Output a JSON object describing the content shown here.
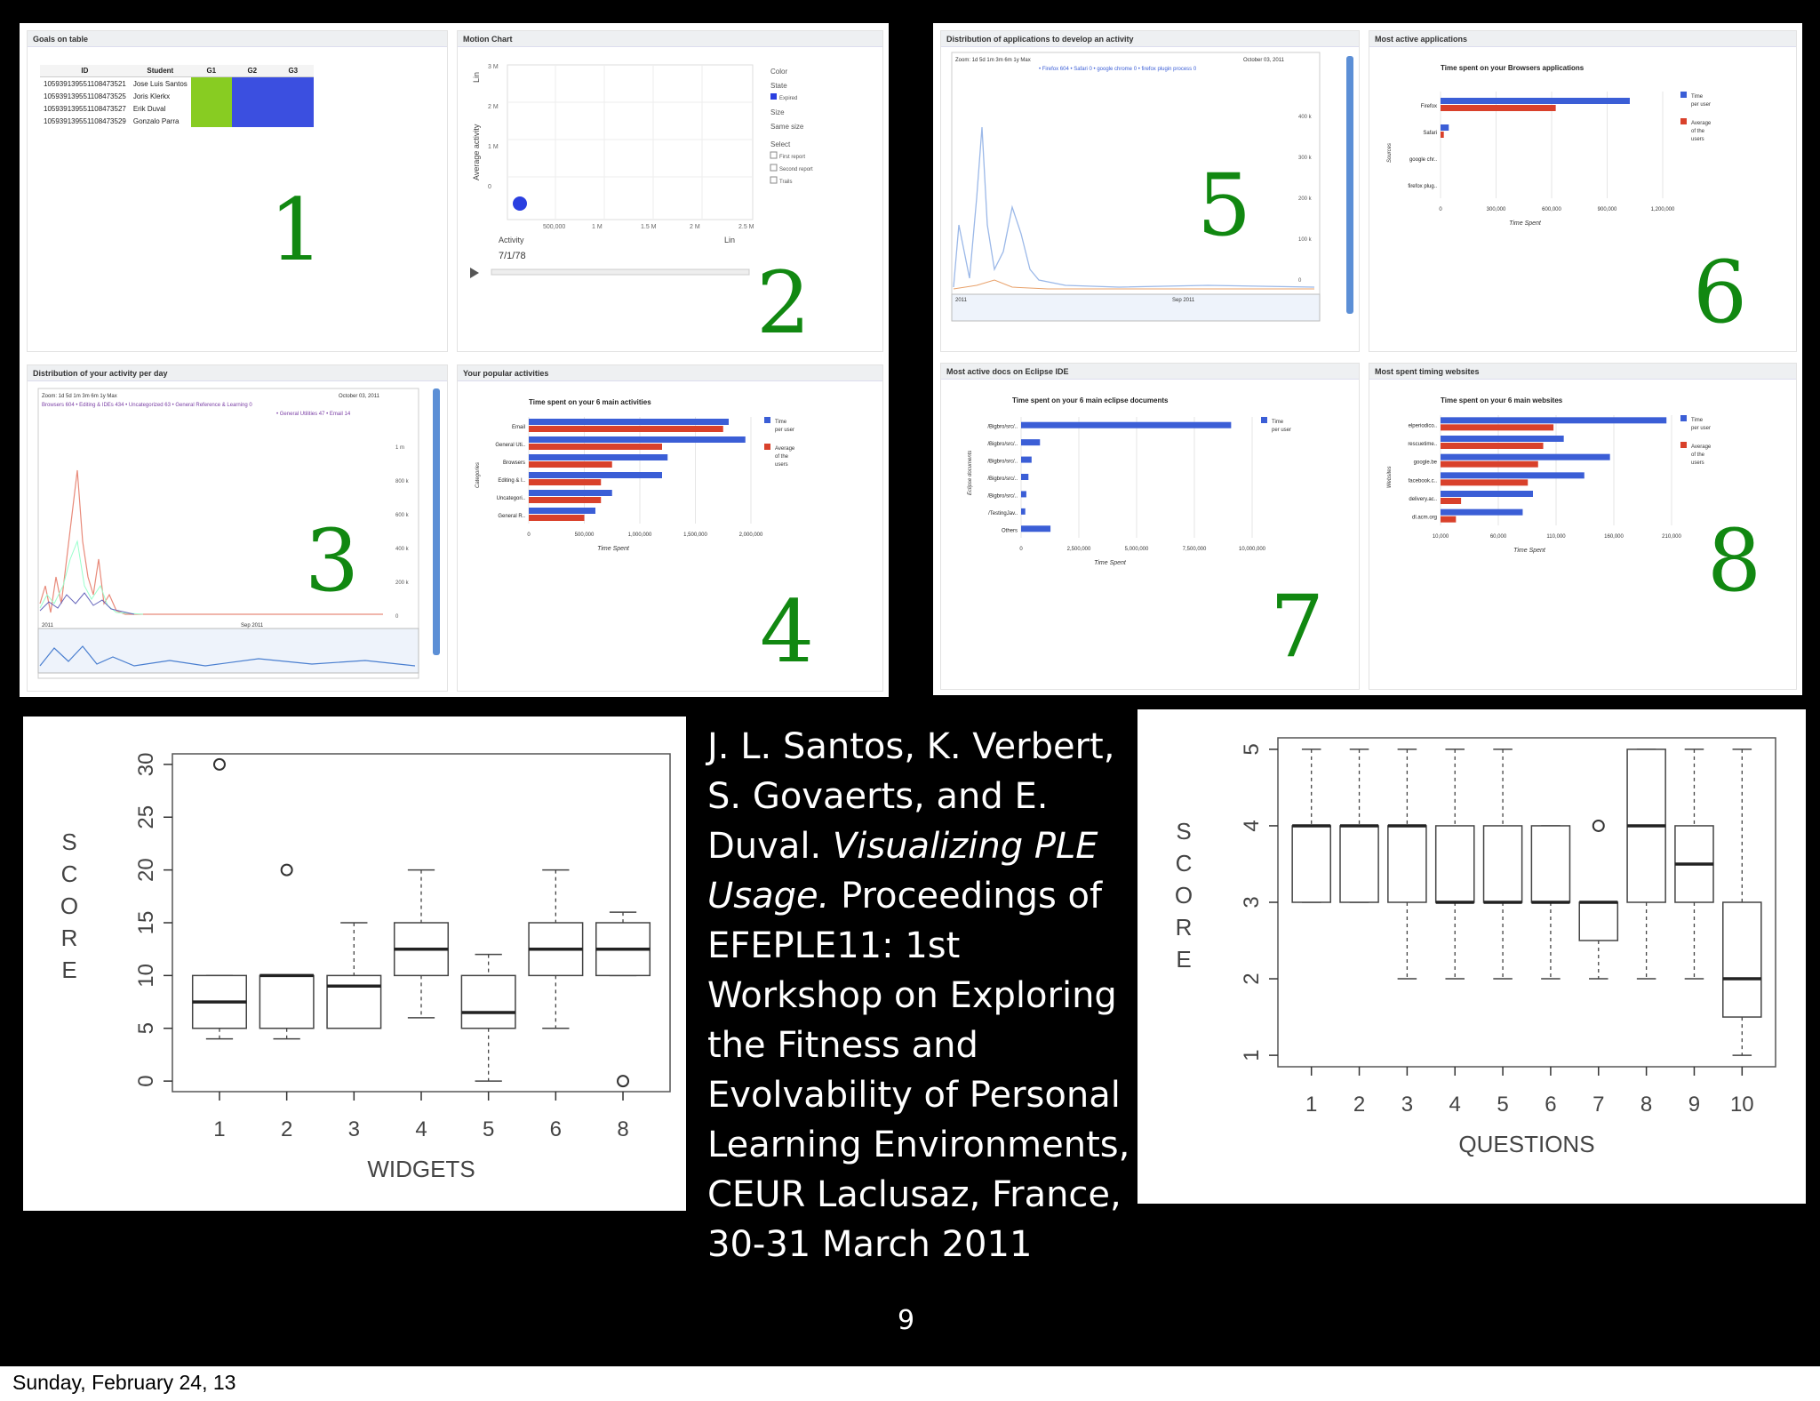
{
  "slide": {
    "page_number": "9",
    "footer_date": "Sunday, February 24, 13",
    "citation": {
      "authors": "J. L. Santos, K. Verbert, S. Govaerts, and E. Duval.",
      "title": "Visualizing PLE Usage.",
      "rest": "Proceedings of EFEPLE11: 1st Workshop on Exploring the Fitness and Evolvability of Personal Learning Environments, CEUR Laclusaz, France, 30-31 March 2011"
    }
  },
  "widgets": {
    "w1": {
      "title": "Goals on table",
      "number": "1",
      "headers": [
        "ID",
        "Student",
        "G1",
        "G2",
        "G3"
      ],
      "rows": [
        [
          "105939139551108473521",
          "Jose Luis Santos"
        ],
        [
          "105939139551108473525",
          "Joris Klerkx"
        ],
        [
          "105939139551108473527",
          "Erik Duval"
        ],
        [
          "105939139551108473529",
          "Gonzalo Parra"
        ]
      ]
    },
    "w2": {
      "title": "Motion Chart",
      "number": "2",
      "y_axis": "Average activity",
      "y_scale": "Lin",
      "y_ticks": [
        "3 M",
        "2 M",
        "1 M",
        "0"
      ],
      "x_ticks": [
        "500,000",
        "1 M",
        "1.5 M",
        "2 M",
        "2.5 M"
      ],
      "x_axis": "Activity",
      "x_scale": "Lin",
      "date": "7/1/78",
      "side": {
        "color": "Color",
        "state": "State",
        "color_value": "Expired",
        "size": "Size",
        "size_value": "Same size",
        "select": "Select",
        "opt1": "First report",
        "opt2": "Second report",
        "opt3": "Trails"
      }
    },
    "w3": {
      "title": "Distribution of your activity per day",
      "number": "3",
      "zoom": "Zoom: 1d 5d 1m 3m 6m 1y Max",
      "date": "October 03, 2011",
      "legend1": "Browsers 604 • Editing & IDEs 434 • Uncategorized 63 • General Reference & Learning 0",
      "legend2": "• General Utilities 47 • Email 14",
      "y_ticks": [
        "1 m",
        "800 k",
        "600 k",
        "400 k",
        "200 k",
        "0"
      ],
      "range_left": "2011",
      "range_right": "Sep 2011"
    },
    "w4": {
      "title": "Your popular activities",
      "number": "4",
      "chart_title": "Time spent on your 6 main activities",
      "y_axis": "Categories",
      "x_axis": "Time Spent",
      "legend": [
        "Time per user",
        "Average of the users"
      ]
    },
    "w5": {
      "title": "Distribution of applications to develop an activity",
      "number": "5",
      "zoom": "Zoom: 1d 5d 1m 3m 6m 1y Max",
      "date": "October 03, 2011",
      "legend": "• Firefox 604 • Safari 0 • google chrome 0 • firefox plugin process 0",
      "y_ticks": [
        "400 k",
        "300 k",
        "200 k",
        "100 k",
        "0"
      ],
      "range_left": "2011",
      "range_right": "Sep 2011"
    },
    "w6": {
      "title": "Most active applications",
      "number": "6",
      "chart_title": "Time spent on your Browsers applications",
      "y_axis": "Sources",
      "x_axis": "Time Spent",
      "legend": [
        "Time per user",
        "Average of the users"
      ]
    },
    "w7": {
      "title": "Most active docs on Eclipse IDE",
      "number": "7",
      "chart_title": "Time spent on your 6 main eclipse documents",
      "y_axis": "Eclipse documents",
      "x_axis": "Time Spent",
      "legend": [
        "Time per user"
      ]
    },
    "w8": {
      "title": "Most spent timing websites",
      "number": "8",
      "chart_title": "Time spent on your 6 main websites",
      "y_axis": "Websites",
      "x_axis": "Time Spent",
      "legend": [
        "Time per user",
        "Average of the users"
      ]
    }
  },
  "colors": {
    "blue": "#3b5ed6",
    "red": "#d9412b",
    "green": "#118811"
  },
  "chart_data": [
    {
      "type": "bar",
      "orientation": "horizontal",
      "id": "w4",
      "title": "Time spent on your 6 main activities",
      "categories": [
        "Email",
        "General Uti..",
        "Browsers",
        "Editing & I..",
        "Uncategori..",
        "General R.."
      ],
      "xlabel": "Time Spent",
      "ylabel": "Categories",
      "xticks": [
        "0",
        "500,000",
        "1,000,000",
        "1,500,000",
        "2,000,000"
      ],
      "xlim": [
        0,
        2000000
      ],
      "series": [
        {
          "name": "Time per user",
          "color": "#3b5ed6",
          "values": [
            1800000,
            1950000,
            1250000,
            1200000,
            750000,
            600000
          ]
        },
        {
          "name": "Average of the users",
          "color": "#d9412b",
          "values": [
            1750000,
            1200000,
            750000,
            650000,
            650000,
            500000
          ]
        }
      ]
    },
    {
      "type": "bar",
      "orientation": "horizontal",
      "id": "w6",
      "title": "Time spent on your Browsers applications",
      "categories": [
        "Firefox",
        "Safari",
        "google chr..",
        "firefox plug.."
      ],
      "xlabel": "Time Spent",
      "ylabel": "Sources",
      "xticks": [
        "0",
        "300,000",
        "600,000",
        "900,000",
        "1,200,000"
      ],
      "xlim": [
        0,
        1350000
      ],
      "series": [
        {
          "name": "Time per user",
          "color": "#3b5ed6",
          "values": [
            1150000,
            50000,
            0,
            0
          ]
        },
        {
          "name": "Average of the users",
          "color": "#d9412b",
          "values": [
            700000,
            20000,
            0,
            0
          ]
        }
      ]
    },
    {
      "type": "bar",
      "orientation": "horizontal",
      "id": "w7",
      "title": "Time spent on your 6 main eclipse documents",
      "categories": [
        "/Bigbro/src/..",
        "/Bigbro/src/..",
        "/Bigbro/src/..",
        "/Bigbro/src/..",
        "/Bigbro/src/..",
        "/TestingJav..",
        "Others"
      ],
      "xlabel": "Time Spent",
      "ylabel": "Eclipse documents",
      "xticks": [
        "0",
        "2,500,000",
        "5,000,000",
        "7,500,000",
        "10,000,000"
      ],
      "xlim": [
        0,
        11000000
      ],
      "series": [
        {
          "name": "Time per user",
          "color": "#3b5ed6",
          "values": [
            10000000,
            900000,
            500000,
            350000,
            250000,
            200000,
            1400000
          ]
        }
      ]
    },
    {
      "type": "bar",
      "orientation": "horizontal",
      "id": "w8",
      "title": "Time spent on your 6 main websites",
      "categories": [
        "elperiodico..",
        "rescuetime..",
        "google.be",
        "facebook.c..",
        "delivery.ac..",
        "dl.acm.org"
      ],
      "xlabel": "Time Spent",
      "ylabel": "Websites",
      "xticks": [
        "10,000",
        "60,000",
        "110,000",
        "160,000",
        "210,000"
      ],
      "xlim": [
        10000,
        235000
      ],
      "series": [
        {
          "name": "Time per user",
          "color": "#3b5ed6",
          "values": [
            230000,
            130000,
            175000,
            150000,
            100000,
            90000
          ]
        },
        {
          "name": "Average of the users",
          "color": "#d9412b",
          "values": [
            120000,
            110000,
            105000,
            95000,
            30000,
            25000
          ]
        }
      ]
    },
    {
      "type": "box",
      "id": "box1",
      "xlabel": "WIDGETS",
      "ylabel": "SCORE",
      "categories": [
        "1",
        "2",
        "3",
        "4",
        "5",
        "6",
        "8"
      ],
      "yticks": [
        0,
        5,
        10,
        15,
        20,
        25,
        30
      ],
      "ylim": [
        -1,
        31
      ],
      "boxes": [
        {
          "min": 4,
          "q1": 5,
          "median": 7.5,
          "q3": 10,
          "max": 10,
          "outliers": [
            30
          ]
        },
        {
          "min": 4,
          "q1": 5,
          "median": 10,
          "q3": 10,
          "max": 10,
          "outliers": [
            20
          ]
        },
        {
          "min": 5,
          "q1": 5,
          "median": 9,
          "q3": 10,
          "max": 15,
          "outliers": []
        },
        {
          "min": 6,
          "q1": 10,
          "median": 12.5,
          "q3": 15,
          "max": 20,
          "outliers": []
        },
        {
          "min": 0,
          "q1": 5,
          "median": 6.5,
          "q3": 10,
          "max": 12,
          "outliers": []
        },
        {
          "min": 5,
          "q1": 10,
          "median": 12.5,
          "q3": 15,
          "max": 20,
          "outliers": []
        },
        {
          "min": 10,
          "q1": 10,
          "median": 12.5,
          "q3": 15,
          "max": 16,
          "outliers": [
            0
          ]
        }
      ]
    },
    {
      "type": "box",
      "id": "box2",
      "xlabel": "QUESTIONS",
      "ylabel": "SCORE",
      "categories": [
        "1",
        "2",
        "3",
        "4",
        "5",
        "6",
        "7",
        "8",
        "9",
        "10"
      ],
      "yticks": [
        1,
        2,
        3,
        4,
        5
      ],
      "ylim": [
        0.85,
        5.15
      ],
      "boxes": [
        {
          "min": 3,
          "q1": 3,
          "median": 4,
          "q3": 4,
          "max": 5,
          "outliers": []
        },
        {
          "min": 3,
          "q1": 3,
          "median": 4,
          "q3": 4,
          "max": 5,
          "outliers": []
        },
        {
          "min": 2,
          "q1": 3,
          "median": 4,
          "q3": 4,
          "max": 5,
          "outliers": []
        },
        {
          "min": 2,
          "q1": 3,
          "median": 3,
          "q3": 4,
          "max": 5,
          "outliers": []
        },
        {
          "min": 2,
          "q1": 3,
          "median": 3,
          "q3": 4,
          "max": 5,
          "outliers": []
        },
        {
          "min": 2,
          "q1": 3,
          "median": 3,
          "q3": 4,
          "max": 4,
          "outliers": []
        },
        {
          "min": 2,
          "q1": 2.5,
          "median": 3,
          "q3": 3,
          "max": 3,
          "outliers": [
            4
          ]
        },
        {
          "min": 2,
          "q1": 3,
          "median": 4,
          "q3": 5,
          "max": 5,
          "outliers": []
        },
        {
          "min": 2,
          "q1": 3,
          "median": 3.5,
          "q3": 4,
          "max": 5,
          "outliers": []
        },
        {
          "min": 1,
          "q1": 1.5,
          "median": 2,
          "q3": 3,
          "max": 5,
          "outliers": []
        }
      ]
    }
  ]
}
